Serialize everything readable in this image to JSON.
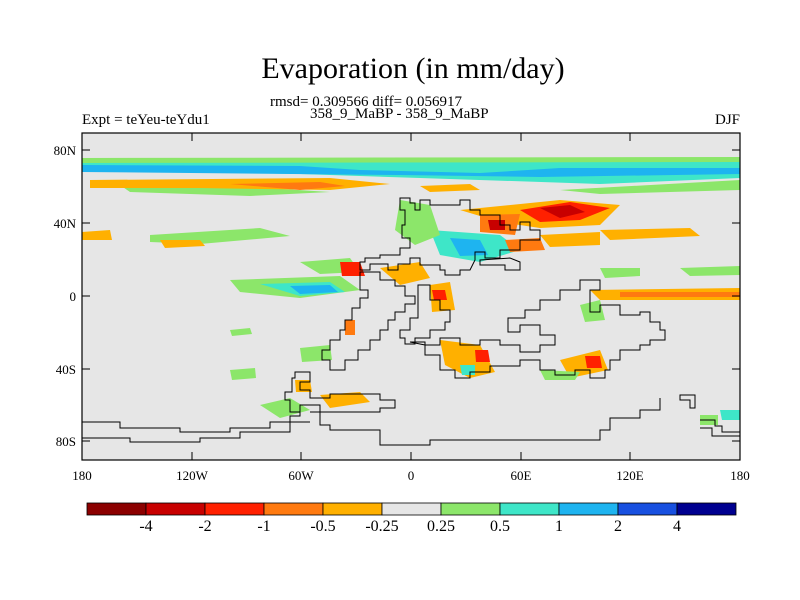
{
  "figure": {
    "title": "Evaporation (in mm/day)",
    "stats_line": "rmsd= 0.309566 diff= 0.056917",
    "case_line": "358_9_MaBP - 358_9_MaBP",
    "experiment": "Expt = teYeu-teYdu1",
    "season": "DJF"
  },
  "axes": {
    "lat_ticks": [
      "80N",
      "40N",
      "0",
      "40S",
      "80S"
    ],
    "lon_ticks": [
      "180",
      "120W",
      "60W",
      "0",
      "60E",
      "120E",
      "180"
    ]
  },
  "colorbar": {
    "colors": [
      "#8b0000",
      "#c80000",
      "#ff2000",
      "#ff7a10",
      "#ffb000",
      "#e6e6e6",
      "#8ce66a",
      "#3ee6c8",
      "#1eb4f0",
      "#1850e0",
      "#000090"
    ],
    "labels": [
      "-4",
      "-2",
      "-1",
      "-0.5",
      "-0.25",
      "0.25",
      "0.5",
      "1",
      "2",
      "4"
    ]
  },
  "colors": {
    "background": "#e6e6e6",
    "coastline": "#000000"
  }
}
